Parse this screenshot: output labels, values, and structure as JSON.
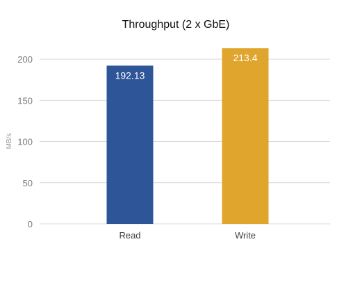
{
  "chart_data": {
    "type": "bar",
    "title": "Throughput (2 x GbE)",
    "xlabel": "",
    "ylabel": "MB/s",
    "categories": [
      "Read",
      "Write"
    ],
    "values": [
      192.13,
      213.4
    ],
    "value_labels": [
      "192.13",
      "213.4"
    ],
    "colors": [
      "#2d5597",
      "#e0a52d"
    ],
    "ylim": [
      0,
      220
    ],
    "yticks": [
      0,
      50,
      100,
      150,
      200
    ],
    "grid": true,
    "legend": "none"
  }
}
